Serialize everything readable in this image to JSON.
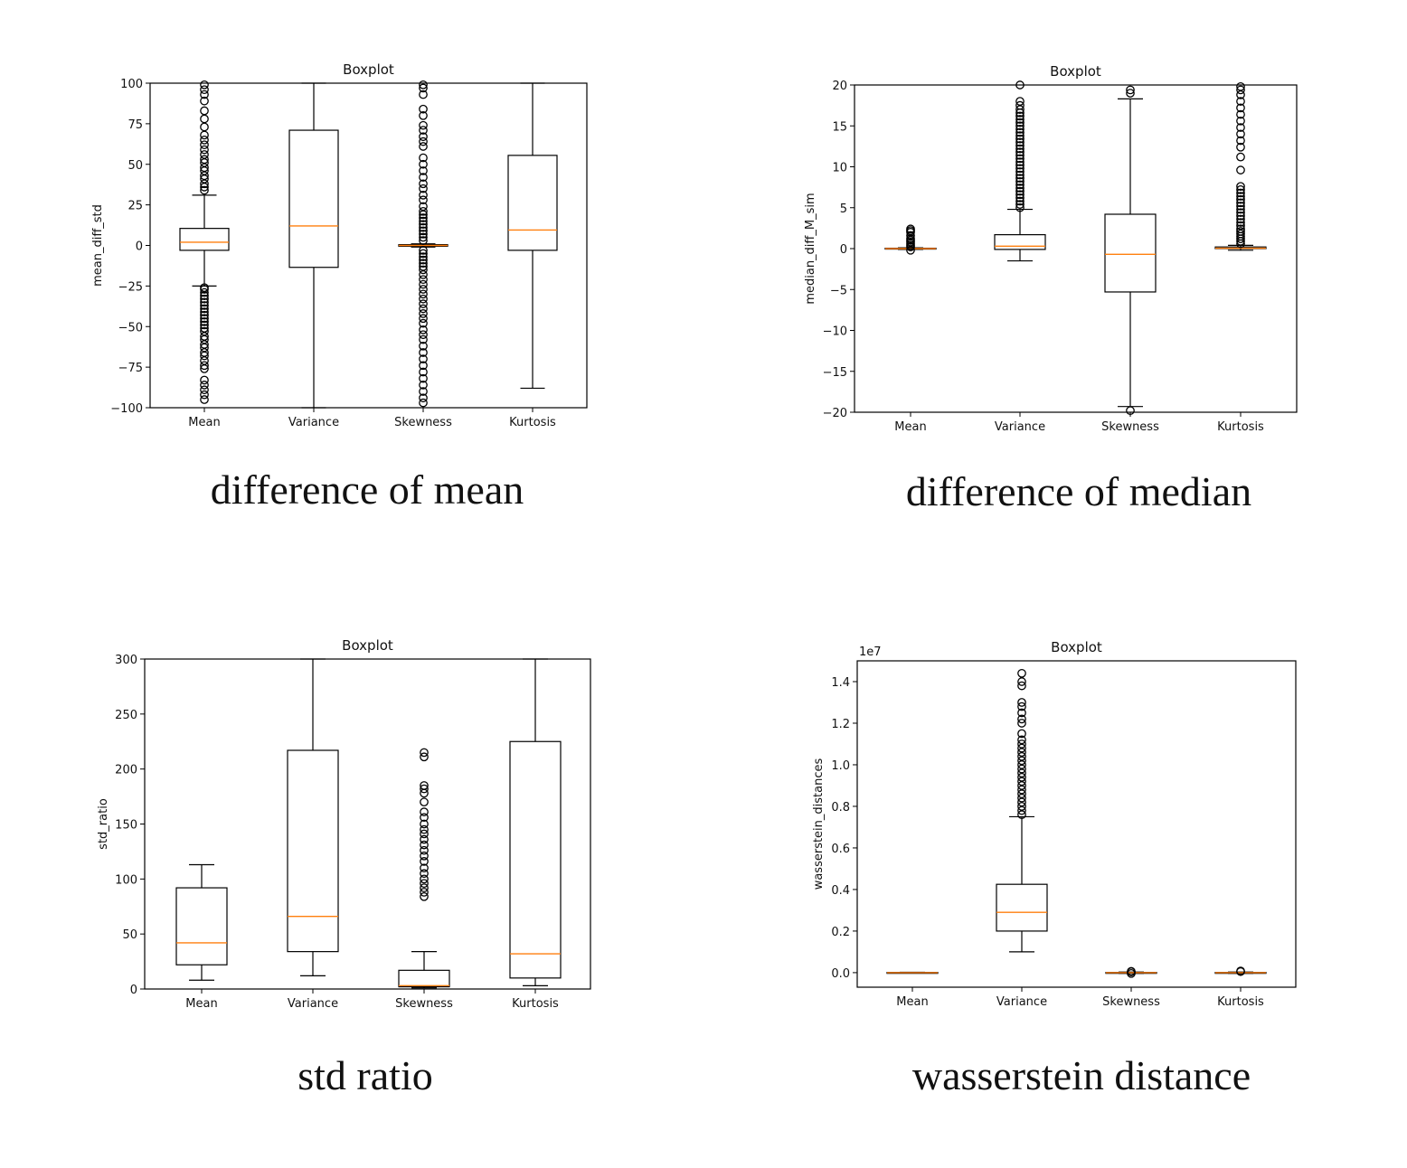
{
  "captions": [
    "difference of mean",
    "difference of median",
    "std ratio",
    "wasserstein distance"
  ],
  "chart_data": [
    {
      "type": "boxplot",
      "title": "Boxplot",
      "ylabel": "mean_diff_std",
      "categories": [
        "Mean",
        "Variance",
        "Skewness",
        "Kurtosis"
      ],
      "ylim": [
        -100,
        100
      ],
      "yticks": [
        -100,
        -75,
        -50,
        -25,
        0,
        25,
        50,
        75,
        100
      ],
      "ytick_labels": [
        "−100",
        "−75",
        "−50",
        "−25",
        "0",
        "25",
        "50",
        "75",
        "100"
      ],
      "offset_label": "",
      "boxes": [
        {
          "whislo": -25,
          "q1": -3,
          "med": 2,
          "q3": 10.5,
          "whishi": 31,
          "fliers": [
            -95,
            -92,
            -89,
            -86,
            -83,
            -76,
            -74,
            -71,
            -68,
            -66,
            -63,
            -61,
            -58,
            -56,
            -53,
            -51,
            -49,
            -47,
            -45,
            -43,
            -41,
            -39,
            -37,
            -35,
            -33,
            -31,
            -29,
            -27,
            -26,
            34,
            36,
            38,
            41,
            43,
            46,
            48,
            51,
            53,
            56,
            59,
            62,
            65,
            68,
            73,
            78,
            83,
            89,
            93,
            96,
            99
          ]
        },
        {
          "whislo": -100,
          "q1": -13.5,
          "med": 12,
          "q3": 71,
          "whishi": 100,
          "fliers": []
        },
        {
          "whislo": -1,
          "q1": -0.5,
          "med": 0,
          "q3": 0.5,
          "whishi": 1,
          "fliers": [
            -97,
            -94,
            -90,
            -86,
            -82,
            -78,
            -74,
            -70,
            -66,
            -62,
            -58,
            -55,
            -52,
            -48,
            -45,
            -42,
            -39,
            -36,
            -33,
            -30,
            -27,
            -24,
            -21,
            -18,
            -15,
            -13,
            -11,
            -9,
            -7,
            -5,
            -3,
            3,
            5,
            7,
            9,
            11,
            13,
            15,
            17,
            19,
            21,
            24,
            28,
            31,
            35,
            38,
            42,
            46,
            50,
            54,
            61,
            64,
            67,
            71,
            74,
            80,
            84,
            93,
            97,
            99
          ]
        },
        {
          "whislo": -88,
          "q1": -3,
          "med": 9.5,
          "q3": 55.5,
          "whishi": 100,
          "fliers": []
        }
      ]
    },
    {
      "type": "boxplot",
      "title": "Boxplot",
      "ylabel": "median_diff_M_sim",
      "categories": [
        "Mean",
        "Variance",
        "Skewness",
        "Kurtosis"
      ],
      "ylim": [
        -20,
        20
      ],
      "yticks": [
        -20,
        -15,
        -10,
        -5,
        0,
        5,
        10,
        15,
        20
      ],
      "ytick_labels": [
        "−20",
        "−15",
        "−10",
        "−5",
        "0",
        "5",
        "10",
        "15",
        "20"
      ],
      "offset_label": "",
      "boxes": [
        {
          "whislo": -0.1,
          "q1": -0.05,
          "med": 0,
          "q3": 0.05,
          "whishi": 0.1,
          "fliers": [
            -0.2,
            0.2,
            0.4,
            0.6,
            0.8,
            1.0,
            1.2,
            1.6,
            2.0,
            2.2,
            2.4
          ]
        },
        {
          "whislo": -1.5,
          "q1": -0.1,
          "med": 0.3,
          "q3": 1.7,
          "whishi": 4.8,
          "fliers": [
            5.0,
            5.4,
            5.8,
            6.2,
            6.6,
            7.0,
            7.4,
            7.8,
            8.2,
            8.6,
            9.0,
            9.4,
            9.8,
            10.2,
            10.6,
            11.0,
            11.4,
            11.8,
            12.2,
            12.6,
            13.0,
            13.4,
            13.8,
            14.2,
            14.6,
            15.0,
            15.4,
            15.8,
            16.2,
            16.6,
            17.0,
            17.5,
            18.0,
            20.0
          ]
        },
        {
          "whislo": -19.3,
          "q1": -5.3,
          "med": -0.7,
          "q3": 4.2,
          "whishi": 18.3,
          "fliers": [
            -19.8,
            19.0,
            19.4
          ]
        },
        {
          "whislo": -0.2,
          "q1": 0,
          "med": 0.05,
          "q3": 0.2,
          "whishi": 0.4,
          "fliers": [
            0.6,
            0.9,
            1.2,
            1.5,
            1.8,
            2.1,
            2.4,
            2.8,
            3.2,
            3.6,
            4.0,
            4.4,
            4.8,
            5.2,
            5.6,
            6.0,
            6.4,
            6.8,
            7.2,
            7.6,
            9.6,
            11.2,
            12.4,
            13.2,
            14.0,
            14.8,
            15.6,
            16.4,
            17.2,
            18.0,
            18.8,
            19.4,
            19.8
          ]
        }
      ]
    },
    {
      "type": "boxplot",
      "title": "Boxplot",
      "ylabel": "std_ratio",
      "categories": [
        "Mean",
        "Variance",
        "Skewness",
        "Kurtosis"
      ],
      "ylim": [
        0,
        300
      ],
      "yticks": [
        0,
        50,
        100,
        150,
        200,
        250,
        300
      ],
      "ytick_labels": [
        "0",
        "50",
        "100",
        "150",
        "200",
        "250",
        "300"
      ],
      "offset_label": "",
      "boxes": [
        {
          "whislo": 8,
          "q1": 22,
          "med": 42,
          "q3": 92,
          "whishi": 113,
          "fliers": []
        },
        {
          "whislo": 12,
          "q1": 34,
          "med": 66,
          "q3": 217,
          "whishi": 300,
          "fliers": []
        },
        {
          "whislo": 1,
          "q1": 2,
          "med": 3,
          "q3": 17,
          "whishi": 34,
          "fliers": [
            84,
            88,
            92,
            96,
            100,
            105,
            110,
            116,
            121,
            126,
            131,
            136,
            141,
            145,
            150,
            156,
            161,
            170,
            178,
            182,
            185,
            211,
            215
          ]
        },
        {
          "whislo": 3,
          "q1": 10,
          "med": 32,
          "q3": 225,
          "whishi": 300,
          "fliers": []
        }
      ]
    },
    {
      "type": "boxplot",
      "title": "Boxplot",
      "ylabel": "wasserstein_distances",
      "categories": [
        "Mean",
        "Variance",
        "Skewness",
        "Kurtosis"
      ],
      "ylim": [
        -0.07,
        1.5
      ],
      "yticks": [
        0.0,
        0.2,
        0.4,
        0.6,
        0.8,
        1.0,
        1.2,
        1.4
      ],
      "ytick_labels": [
        "0.0",
        "0.2",
        "0.4",
        "0.6",
        "0.8",
        "1.0",
        "1.2",
        "1.4"
      ],
      "offset_label": "1e7",
      "boxes": [
        {
          "whislo": -0.002,
          "q1": -0.001,
          "med": 0,
          "q3": 0.001,
          "whishi": 0.002,
          "fliers": []
        },
        {
          "whislo": 0.1,
          "q1": 0.2,
          "med": 0.29,
          "q3": 0.425,
          "whishi": 0.75,
          "fliers": [
            0.76,
            0.78,
            0.8,
            0.82,
            0.84,
            0.86,
            0.88,
            0.9,
            0.92,
            0.94,
            0.96,
            0.98,
            1.0,
            1.02,
            1.04,
            1.06,
            1.08,
            1.1,
            1.12,
            1.15,
            1.2,
            1.22,
            1.25,
            1.28,
            1.3,
            1.38,
            1.4,
            1.44
          ]
        },
        {
          "whislo": -0.003,
          "q1": -0.001,
          "med": 0,
          "q3": 0.001,
          "whishi": 0.003,
          "fliers": [
            -0.004,
            0.004,
            0.006
          ]
        },
        {
          "whislo": -0.003,
          "q1": -0.001,
          "med": 0,
          "q3": 0.001,
          "whishi": 0.003,
          "fliers": [
            0.005,
            0.008
          ]
        }
      ]
    }
  ]
}
